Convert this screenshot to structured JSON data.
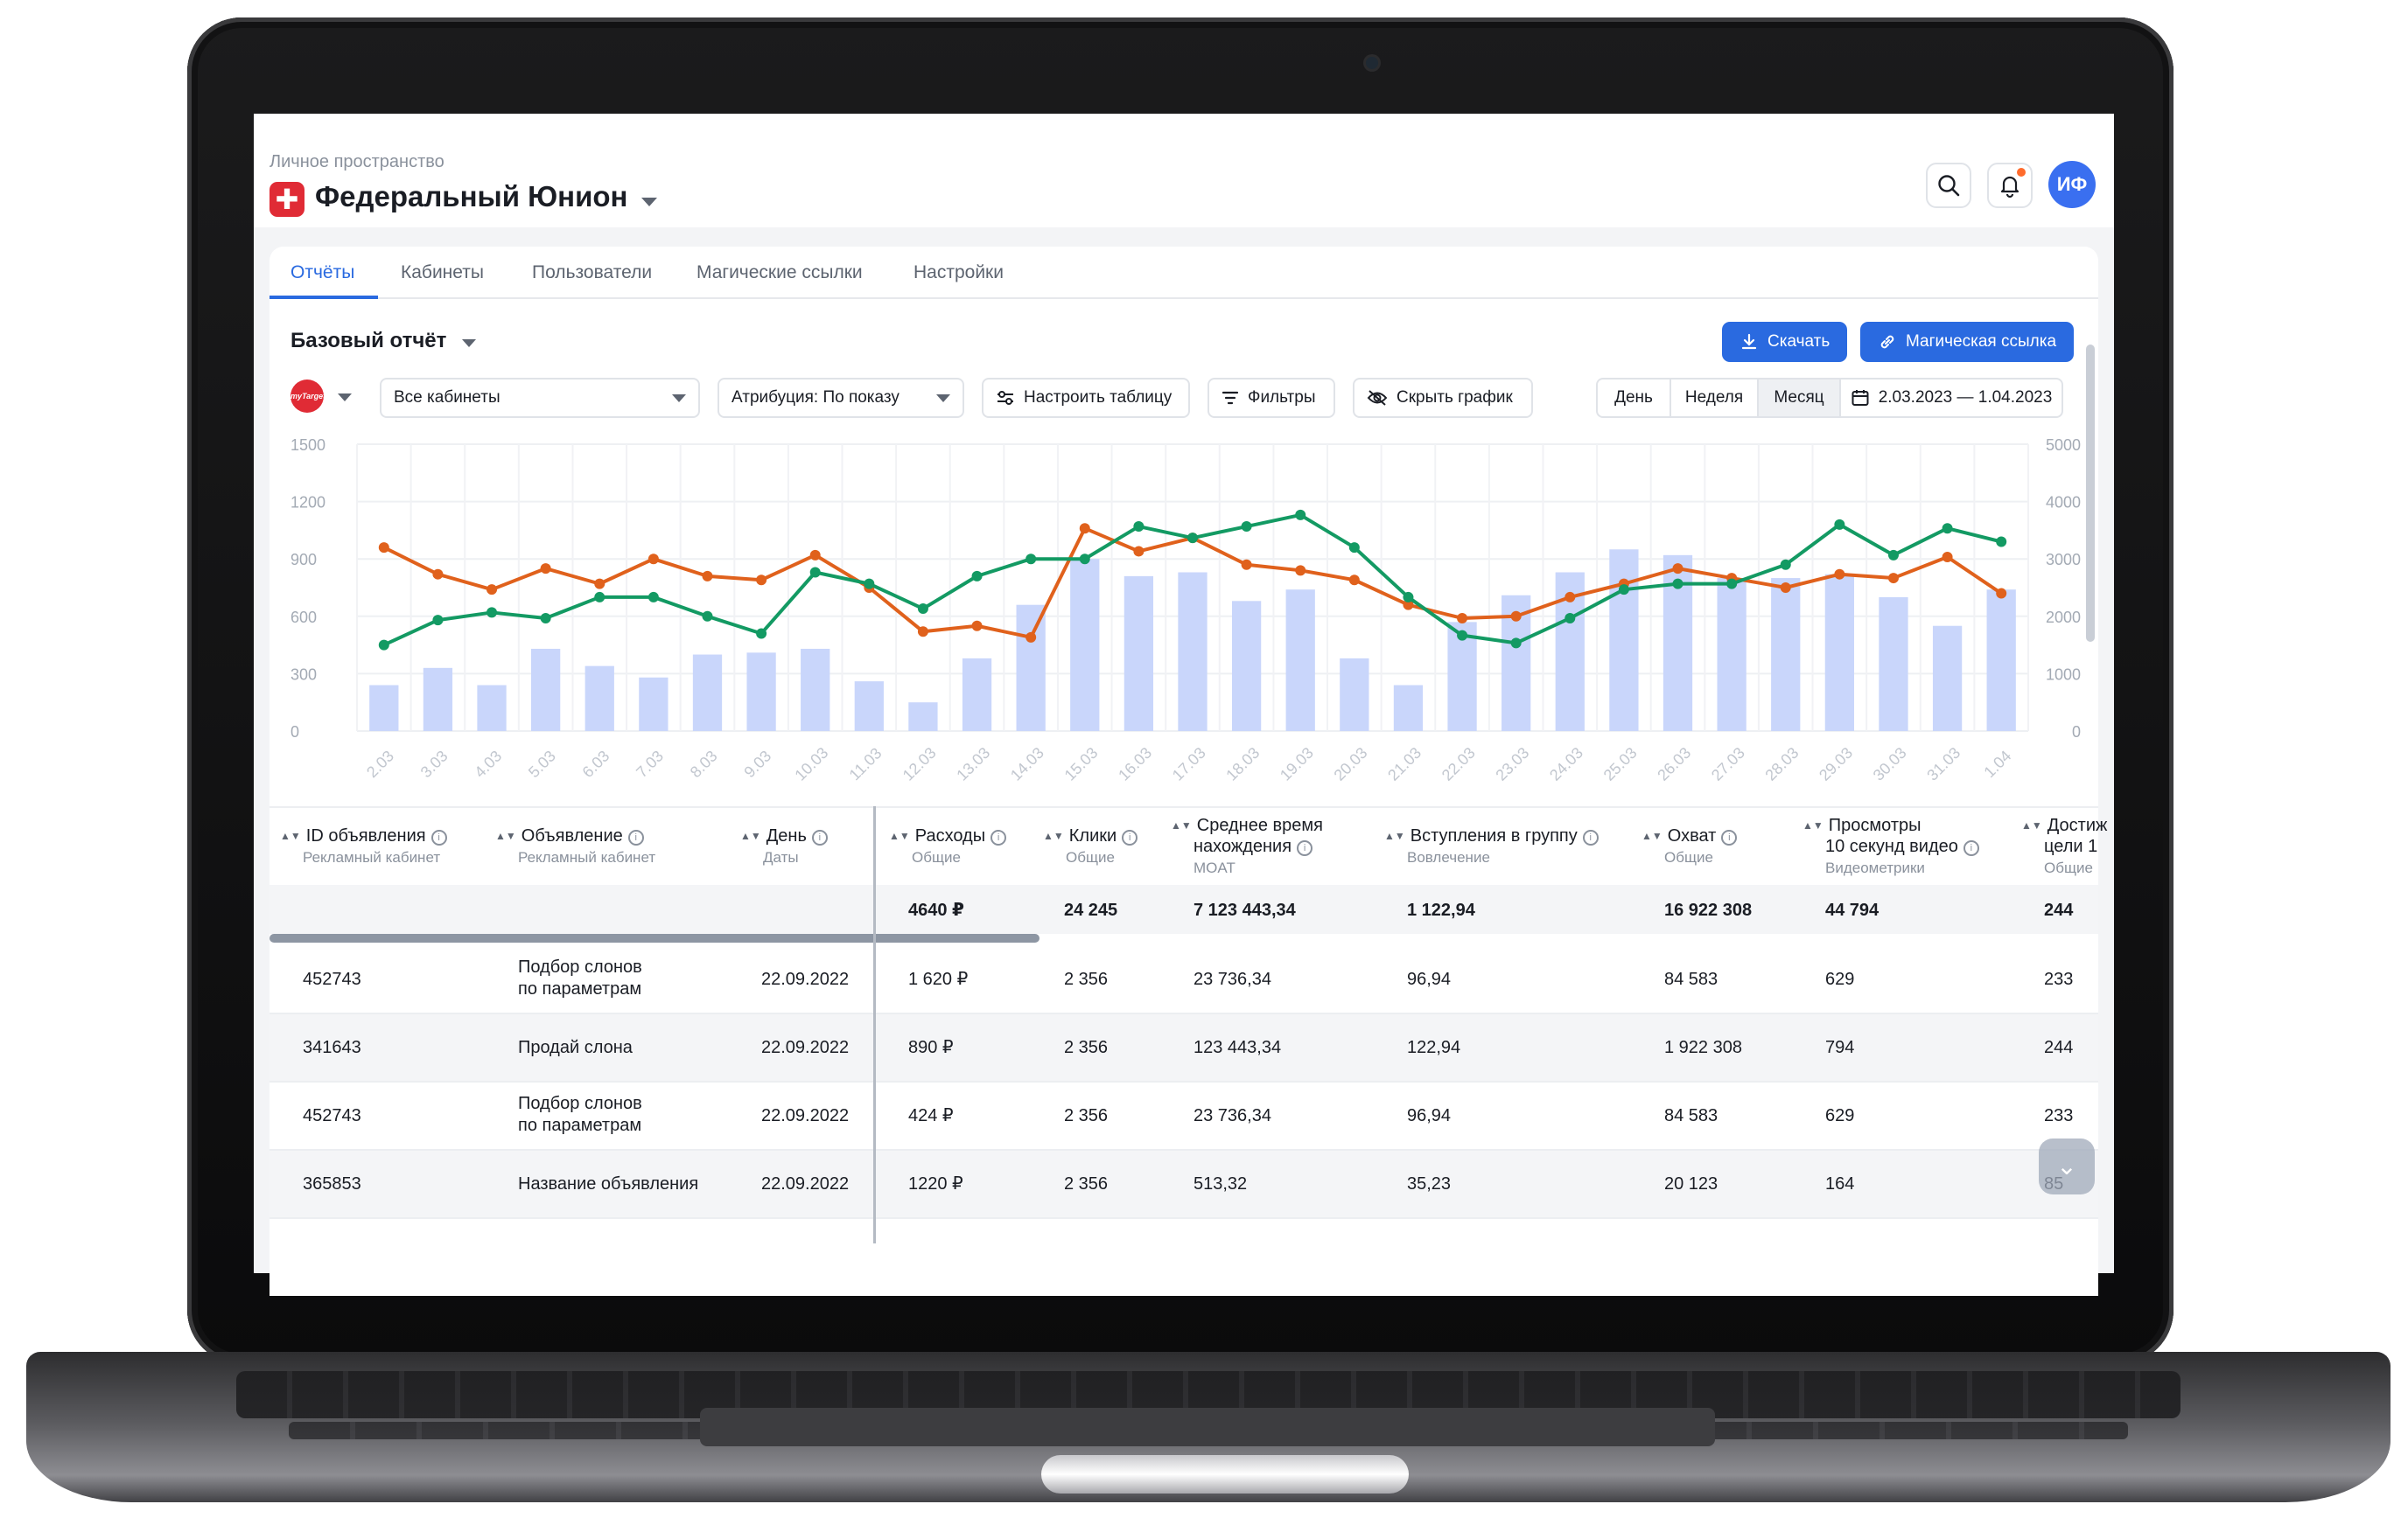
{
  "header": {
    "workspace_caption": "Личное пространство",
    "workspace_title": "Федеральный Юнион",
    "logo_symbol": "✚",
    "avatar_initials": "ИФ",
    "search_icon": "search-icon",
    "bell_icon": "bell-icon"
  },
  "tabs": [
    {
      "label": "Отчёты",
      "active": true
    },
    {
      "label": "Кабинеты",
      "active": false
    },
    {
      "label": "Пользователи",
      "active": false
    },
    {
      "label": "Магические ссылки",
      "active": false
    },
    {
      "label": "Настройки",
      "active": false
    }
  ],
  "report": {
    "title": "Базовый отчёт",
    "download_label": "Скачать",
    "magic_link_label": "Магическая ссылка"
  },
  "filters": {
    "platform_logo_text": "myTarget",
    "cabinets_select": "Все кабинеты",
    "attribution_select": "Атрибуция: По показу",
    "configure_table": "Настроить таблицу",
    "filters_button": "Фильтры",
    "hide_chart": "Скрыть график",
    "periods": [
      "День",
      "Неделя",
      "Месяц"
    ],
    "selected_period": "Месяц",
    "date_range": "2.03.2023 — 1.04.2023"
  },
  "chart_data": {
    "type": "bar",
    "categories": [
      "2.03",
      "3.03",
      "4.03",
      "5.03",
      "6.03",
      "7.03",
      "8.03",
      "9.03",
      "10.03",
      "11.03",
      "12.03",
      "13.03",
      "14.03",
      "15.03",
      "16.03",
      "17.03",
      "18.03",
      "19.03",
      "20.03",
      "21.03",
      "22.03",
      "23.03",
      "24.03",
      "25.03",
      "26.03",
      "27.03",
      "28.03",
      "29.03",
      "30.03",
      "31.03",
      "1.04"
    ],
    "y_left": {
      "ticks": [
        0,
        300,
        600,
        900,
        1200,
        1500
      ],
      "ylim": [
        0,
        1500
      ]
    },
    "y_right": {
      "ticks": [
        0,
        1000,
        2000,
        3000,
        4000,
        5000
      ],
      "ylim": [
        0,
        5000
      ]
    },
    "grid": true,
    "series": [
      {
        "kind": "bar",
        "axis": "left",
        "color": "#c9d6fb",
        "values": [
          240,
          330,
          240,
          430,
          340,
          280,
          400,
          410,
          430,
          260,
          150,
          380,
          660,
          900,
          810,
          830,
          680,
          740,
          380,
          240,
          570,
          710,
          830,
          950,
          920,
          800,
          800,
          820,
          700,
          550,
          740
        ]
      },
      {
        "kind": "line",
        "axis": "left",
        "color": "#e0611c",
        "values": [
          960,
          820,
          740,
          850,
          770,
          900,
          810,
          790,
          920,
          750,
          520,
          550,
          490,
          1060,
          940,
          1010,
          870,
          840,
          790,
          660,
          590,
          600,
          700,
          770,
          850,
          800,
          750,
          820,
          800,
          910,
          720
        ]
      },
      {
        "kind": "line",
        "axis": "left",
        "color": "#139a63",
        "values": [
          450,
          580,
          620,
          590,
          700,
          700,
          600,
          510,
          830,
          770,
          640,
          810,
          900,
          900,
          1070,
          1010,
          1070,
          1130,
          960,
          700,
          500,
          460,
          590,
          740,
          770,
          770,
          870,
          1080,
          920,
          1060,
          990
        ]
      }
    ]
  },
  "table": {
    "columns": [
      {
        "title": "ID объявления",
        "sub": "Рекламный кабинет"
      },
      {
        "title": "Объявление",
        "sub": "Рекламный кабинет"
      },
      {
        "title": "День",
        "sub": "Даты"
      },
      {
        "title": "Расходы",
        "sub": "Общие"
      },
      {
        "title": "Клики",
        "sub": "Общие"
      },
      {
        "title": "Среднее время",
        "title2": "нахождения",
        "sub": "MOAT"
      },
      {
        "title": "Вступления в группу",
        "sub": "Вовлечение"
      },
      {
        "title": "Охват",
        "sub": "Общие"
      },
      {
        "title": "Просмотры",
        "title2": "10 секунд видео",
        "sub": "Видеометрики"
      },
      {
        "title": "Достиж",
        "title2": "цели 1",
        "sub": "Общие"
      }
    ],
    "totals": [
      "4640 ₽",
      "24 245",
      "7 123 443,34",
      "1 122,94",
      "16 922 308",
      "44 794",
      "244"
    ],
    "rows": [
      {
        "id": "452743",
        "ad": [
          "Подбор слонов",
          "по параметрам"
        ],
        "day": "22.09.2022",
        "spend": "1 620 ₽",
        "clicks": "2 356",
        "avg_time": "23 736,34",
        "joins": "96,94",
        "reach": "84 583",
        "views": "629",
        "goal": "233"
      },
      {
        "id": "341643",
        "ad": [
          "Продай слона",
          ""
        ],
        "day": "22.09.2022",
        "spend": "890 ₽",
        "clicks": "2 356",
        "avg_time": "123 443,34",
        "joins": "122,94",
        "reach": "1 922 308",
        "views": "794",
        "goal": "244"
      },
      {
        "id": "452743",
        "ad": [
          "Подбор слонов",
          "по параметрам"
        ],
        "day": "22.09.2022",
        "spend": "424 ₽",
        "clicks": "2 356",
        "avg_time": "23 736,34",
        "joins": "96,94",
        "reach": "84 583",
        "views": "629",
        "goal": "233"
      },
      {
        "id": "365853",
        "ad": [
          "Название объявления",
          ""
        ],
        "day": "22.09.2022",
        "spend": "1220 ₽",
        "clicks": "2 356",
        "avg_time": "513,32",
        "joins": "35,23",
        "reach": "20 123",
        "views": "164",
        "goal": "85"
      }
    ]
  }
}
